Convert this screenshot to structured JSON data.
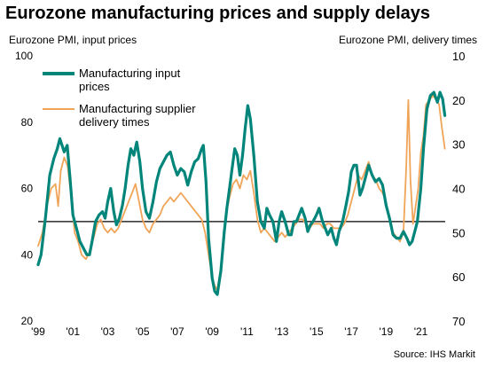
{
  "chart_data": {
    "type": "line",
    "title": "Eurozone manufacturing prices and supply delays",
    "left_axis_label": "Eurozone PMI, input prices",
    "right_axis_label": "Eurozone PMI, delivery times",
    "source": "Source: IHS Markit",
    "left_ylim": [
      20,
      100
    ],
    "left_ticks": [
      20,
      40,
      60,
      80,
      100
    ],
    "right_ylim": [
      70,
      10
    ],
    "right_ticks": [
      10,
      20,
      30,
      40,
      50,
      60,
      70
    ],
    "right_axis_inverted": true,
    "x_tick_labels": [
      "'99",
      "'01",
      "'03",
      "'05",
      "'07",
      "'09",
      "'11",
      "'13",
      "'15",
      "'17",
      "'19",
      "'21"
    ],
    "x_tick_years": [
      1999,
      2001,
      2003,
      2005,
      2007,
      2009,
      2011,
      2013,
      2015,
      2017,
      2019,
      2021
    ],
    "xlim": [
      1999,
      2022.4
    ],
    "reference_line": 50,
    "grid": false,
    "legend_position": "top-left",
    "series": [
      {
        "name": "Manufacturing input prices",
        "axis": "left",
        "color": "#00857a",
        "points": [
          [
            1999.0,
            37
          ],
          [
            1999.17,
            40
          ],
          [
            1999.42,
            51
          ],
          [
            1999.67,
            64
          ],
          [
            1999.9,
            69
          ],
          [
            2000.1,
            72
          ],
          [
            2000.25,
            75
          ],
          [
            2000.5,
            71
          ],
          [
            2000.67,
            73
          ],
          [
            2000.85,
            62
          ],
          [
            2001.0,
            52
          ],
          [
            2001.2,
            48
          ],
          [
            2001.4,
            44
          ],
          [
            2001.6,
            42
          ],
          [
            2001.8,
            40
          ],
          [
            2001.95,
            40
          ],
          [
            2002.1,
            44
          ],
          [
            2002.3,
            50
          ],
          [
            2002.5,
            52
          ],
          [
            2002.7,
            53
          ],
          [
            2002.85,
            51
          ],
          [
            2003.0,
            56
          ],
          [
            2003.17,
            60
          ],
          [
            2003.35,
            53
          ],
          [
            2003.5,
            49
          ],
          [
            2003.67,
            51
          ],
          [
            2003.85,
            55
          ],
          [
            2004.0,
            60
          ],
          [
            2004.17,
            67
          ],
          [
            2004.33,
            72
          ],
          [
            2004.5,
            70
          ],
          [
            2004.67,
            74
          ],
          [
            2004.85,
            68
          ],
          [
            2005.0,
            60
          ],
          [
            2005.2,
            53
          ],
          [
            2005.4,
            51
          ],
          [
            2005.6,
            56
          ],
          [
            2005.8,
            62
          ],
          [
            2006.0,
            66
          ],
          [
            2006.2,
            68
          ],
          [
            2006.4,
            70
          ],
          [
            2006.6,
            71
          ],
          [
            2006.8,
            67
          ],
          [
            2007.0,
            64
          ],
          [
            2007.2,
            66
          ],
          [
            2007.4,
            65
          ],
          [
            2007.6,
            61
          ],
          [
            2007.8,
            65
          ],
          [
            2008.0,
            68
          ],
          [
            2008.2,
            69
          ],
          [
            2008.4,
            72
          ],
          [
            2008.5,
            73
          ],
          [
            2008.65,
            62
          ],
          [
            2008.8,
            45
          ],
          [
            2009.0,
            33
          ],
          [
            2009.15,
            29
          ],
          [
            2009.3,
            28
          ],
          [
            2009.5,
            35
          ],
          [
            2009.7,
            47
          ],
          [
            2009.85,
            54
          ],
          [
            2010.0,
            60
          ],
          [
            2010.15,
            66
          ],
          [
            2010.3,
            72
          ],
          [
            2010.45,
            70
          ],
          [
            2010.6,
            64
          ],
          [
            2010.75,
            70
          ],
          [
            2010.9,
            78
          ],
          [
            2011.05,
            85
          ],
          [
            2011.2,
            81
          ],
          [
            2011.4,
            70
          ],
          [
            2011.6,
            56
          ],
          [
            2011.8,
            50
          ],
          [
            2012.0,
            48
          ],
          [
            2012.15,
            54
          ],
          [
            2012.3,
            52
          ],
          [
            2012.5,
            50
          ],
          [
            2012.7,
            44
          ],
          [
            2012.85,
            50
          ],
          [
            2013.0,
            53
          ],
          [
            2013.2,
            50
          ],
          [
            2013.4,
            46
          ],
          [
            2013.55,
            46
          ],
          [
            2013.7,
            50
          ],
          [
            2013.85,
            50
          ],
          [
            2014.0,
            52
          ],
          [
            2014.15,
            54
          ],
          [
            2014.35,
            51
          ],
          [
            2014.5,
            47
          ],
          [
            2014.65,
            49
          ],
          [
            2014.8,
            50
          ],
          [
            2015.0,
            52
          ],
          [
            2015.15,
            54
          ],
          [
            2015.35,
            50
          ],
          [
            2015.5,
            48
          ],
          [
            2015.65,
            46
          ],
          [
            2015.85,
            48
          ],
          [
            2016.0,
            45
          ],
          [
            2016.15,
            43
          ],
          [
            2016.3,
            47
          ],
          [
            2016.5,
            50
          ],
          [
            2016.7,
            55
          ],
          [
            2016.85,
            59
          ],
          [
            2017.0,
            65
          ],
          [
            2017.15,
            67
          ],
          [
            2017.3,
            67
          ],
          [
            2017.5,
            58
          ],
          [
            2017.65,
            60
          ],
          [
            2017.8,
            63
          ],
          [
            2018.0,
            67
          ],
          [
            2018.2,
            64
          ],
          [
            2018.4,
            62
          ],
          [
            2018.6,
            63
          ],
          [
            2018.8,
            61
          ],
          [
            2019.0,
            55
          ],
          [
            2019.2,
            51
          ],
          [
            2019.4,
            46
          ],
          [
            2019.6,
            45
          ],
          [
            2019.8,
            45
          ],
          [
            2020.0,
            47
          ],
          [
            2020.2,
            45
          ],
          [
            2020.35,
            43
          ],
          [
            2020.5,
            44
          ],
          [
            2020.65,
            47
          ],
          [
            2020.8,
            50
          ],
          [
            2021.0,
            60
          ],
          [
            2021.15,
            72
          ],
          [
            2021.35,
            84
          ],
          [
            2021.55,
            88
          ],
          [
            2021.75,
            89
          ],
          [
            2021.95,
            86
          ],
          [
            2022.1,
            89
          ],
          [
            2022.25,
            87
          ],
          [
            2022.38,
            82
          ]
        ]
      },
      {
        "name": "Manufacturing supplier delivery times",
        "axis": "right",
        "color": "#f0a458",
        "points": [
          [
            1999.0,
            53
          ],
          [
            1999.25,
            50
          ],
          [
            1999.5,
            44
          ],
          [
            1999.75,
            40
          ],
          [
            2000.0,
            39
          ],
          [
            2000.15,
            44
          ],
          [
            2000.3,
            36
          ],
          [
            2000.5,
            33
          ],
          [
            2000.7,
            35
          ],
          [
            2000.9,
            42
          ],
          [
            2001.1,
            50
          ],
          [
            2001.3,
            52
          ],
          [
            2001.5,
            55
          ],
          [
            2001.75,
            56
          ],
          [
            2002.0,
            54
          ],
          [
            2002.2,
            51
          ],
          [
            2002.4,
            48
          ],
          [
            2002.6,
            47
          ],
          [
            2002.8,
            49
          ],
          [
            2003.0,
            50
          ],
          [
            2003.2,
            49
          ],
          [
            2003.4,
            50
          ],
          [
            2003.6,
            49
          ],
          [
            2003.8,
            47
          ],
          [
            2004.0,
            45
          ],
          [
            2004.2,
            43
          ],
          [
            2004.4,
            41
          ],
          [
            2004.6,
            39
          ],
          [
            2004.8,
            43
          ],
          [
            2005.0,
            47
          ],
          [
            2005.2,
            49
          ],
          [
            2005.4,
            50
          ],
          [
            2005.6,
            48
          ],
          [
            2005.8,
            47
          ],
          [
            2006.0,
            46
          ],
          [
            2006.2,
            44
          ],
          [
            2006.4,
            43
          ],
          [
            2006.6,
            42
          ],
          [
            2006.8,
            43
          ],
          [
            2007.0,
            42
          ],
          [
            2007.2,
            41
          ],
          [
            2007.4,
            42
          ],
          [
            2007.6,
            43
          ],
          [
            2007.8,
            44
          ],
          [
            2008.0,
            45
          ],
          [
            2008.2,
            46
          ],
          [
            2008.4,
            47
          ],
          [
            2008.6,
            50
          ],
          [
            2008.8,
            55
          ],
          [
            2009.0,
            60
          ],
          [
            2009.15,
            62
          ],
          [
            2009.3,
            63
          ],
          [
            2009.5,
            58
          ],
          [
            2009.7,
            50
          ],
          [
            2009.85,
            45
          ],
          [
            2010.0,
            42
          ],
          [
            2010.2,
            39
          ],
          [
            2010.4,
            38
          ],
          [
            2010.6,
            40
          ],
          [
            2010.8,
            37
          ],
          [
            2011.0,
            38
          ],
          [
            2011.2,
            36
          ],
          [
            2011.4,
            41
          ],
          [
            2011.6,
            47
          ],
          [
            2011.8,
            50
          ],
          [
            2012.0,
            49
          ],
          [
            2012.2,
            50
          ],
          [
            2012.4,
            51
          ],
          [
            2012.6,
            52
          ],
          [
            2012.8,
            51
          ],
          [
            2013.0,
            50
          ],
          [
            2013.2,
            51
          ],
          [
            2013.4,
            50
          ],
          [
            2013.6,
            49
          ],
          [
            2013.8,
            48
          ],
          [
            2014.0,
            47
          ],
          [
            2014.2,
            47
          ],
          [
            2014.4,
            48
          ],
          [
            2014.6,
            49
          ],
          [
            2014.8,
            48
          ],
          [
            2015.0,
            48
          ],
          [
            2015.2,
            48
          ],
          [
            2015.4,
            49
          ],
          [
            2015.6,
            48
          ],
          [
            2015.8,
            48
          ],
          [
            2016.0,
            49
          ],
          [
            2016.2,
            49
          ],
          [
            2016.4,
            49
          ],
          [
            2016.6,
            48
          ],
          [
            2016.8,
            46
          ],
          [
            2017.0,
            43
          ],
          [
            2017.2,
            40
          ],
          [
            2017.4,
            37
          ],
          [
            2017.6,
            38
          ],
          [
            2017.8,
            36
          ],
          [
            2018.0,
            34
          ],
          [
            2018.2,
            37
          ],
          [
            2018.4,
            38
          ],
          [
            2018.6,
            40
          ],
          [
            2018.8,
            41
          ],
          [
            2019.0,
            43
          ],
          [
            2019.2,
            47
          ],
          [
            2019.4,
            50
          ],
          [
            2019.6,
            51
          ],
          [
            2019.8,
            52
          ],
          [
            2020.0,
            50
          ],
          [
            2020.15,
            36
          ],
          [
            2020.28,
            20
          ],
          [
            2020.4,
            38
          ],
          [
            2020.55,
            48
          ],
          [
            2020.7,
            44
          ],
          [
            2020.85,
            40
          ],
          [
            2021.0,
            32
          ],
          [
            2021.15,
            28
          ],
          [
            2021.3,
            21
          ],
          [
            2021.5,
            20
          ],
          [
            2021.7,
            19
          ],
          [
            2021.9,
            20
          ],
          [
            2022.05,
            21
          ],
          [
            2022.2,
            26
          ],
          [
            2022.38,
            31
          ]
        ]
      }
    ]
  }
}
